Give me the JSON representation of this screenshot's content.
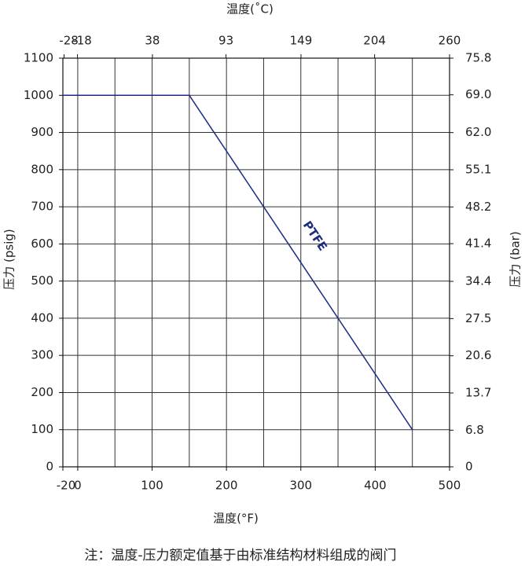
{
  "chart_data": {
    "type": "line",
    "x_label": "温度(°F)",
    "x2_label": "温度(˚C)",
    "y_label": "压力 (psig)",
    "y2_label": "压力 (bar)",
    "note": "注：温度-压力额定值基于由标准结构材料组成的阀门",
    "xlim": [
      -20,
      500
    ],
    "xticks": [
      -20,
      0,
      100,
      200,
      300,
      400,
      500
    ],
    "x_grid": [
      0,
      50,
      100,
      150,
      200,
      250,
      300,
      350,
      400,
      450
    ],
    "x2lim": [
      -28.9,
      260
    ],
    "x2ticks": [
      -28,
      -18,
      38,
      93,
      149,
      204,
      260
    ],
    "ylim": [
      0,
      1100
    ],
    "yticks": [
      0,
      100,
      200,
      300,
      400,
      500,
      600,
      700,
      800,
      900,
      1000,
      1100
    ],
    "y2lim": [
      0,
      75.8
    ],
    "y2ticks": [
      0,
      6.8,
      13.7,
      20.6,
      27.5,
      34.4,
      41.4,
      48.2,
      55.1,
      {
        "value": 62,
        "label": "62.0"
      },
      {
        "value": 69,
        "label": "69.0"
      },
      75.8
    ],
    "grid": true,
    "series": [
      {
        "name": "PTFE",
        "color": "#1f2a80",
        "x": [
          -20,
          150,
          450
        ],
        "values": [
          1000,
          1000,
          100
        ]
      }
    ]
  }
}
